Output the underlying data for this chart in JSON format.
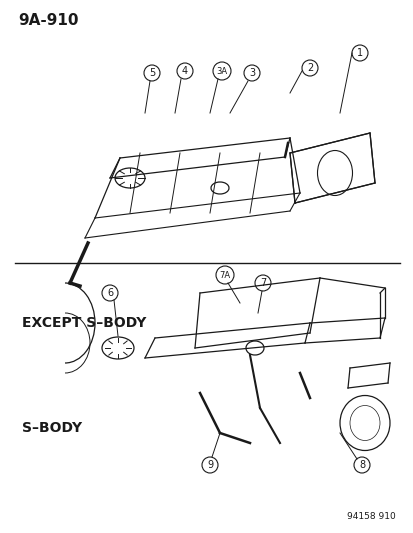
{
  "title_ref": "9A-910",
  "footer_ref": "94158 910",
  "bg_color": "#ffffff",
  "line_color": "#1a1a1a",
  "label_top": "EXCEPT S–BODY",
  "label_bottom": "S–BODY",
  "callouts_top": [
    "1",
    "2",
    "3",
    "3A",
    "4",
    "5"
  ],
  "callouts_bottom": [
    "6",
    "7",
    "7A",
    "8",
    "9"
  ],
  "title_fontsize": 11,
  "label_fontsize": 10,
  "callout_fontsize": 7
}
